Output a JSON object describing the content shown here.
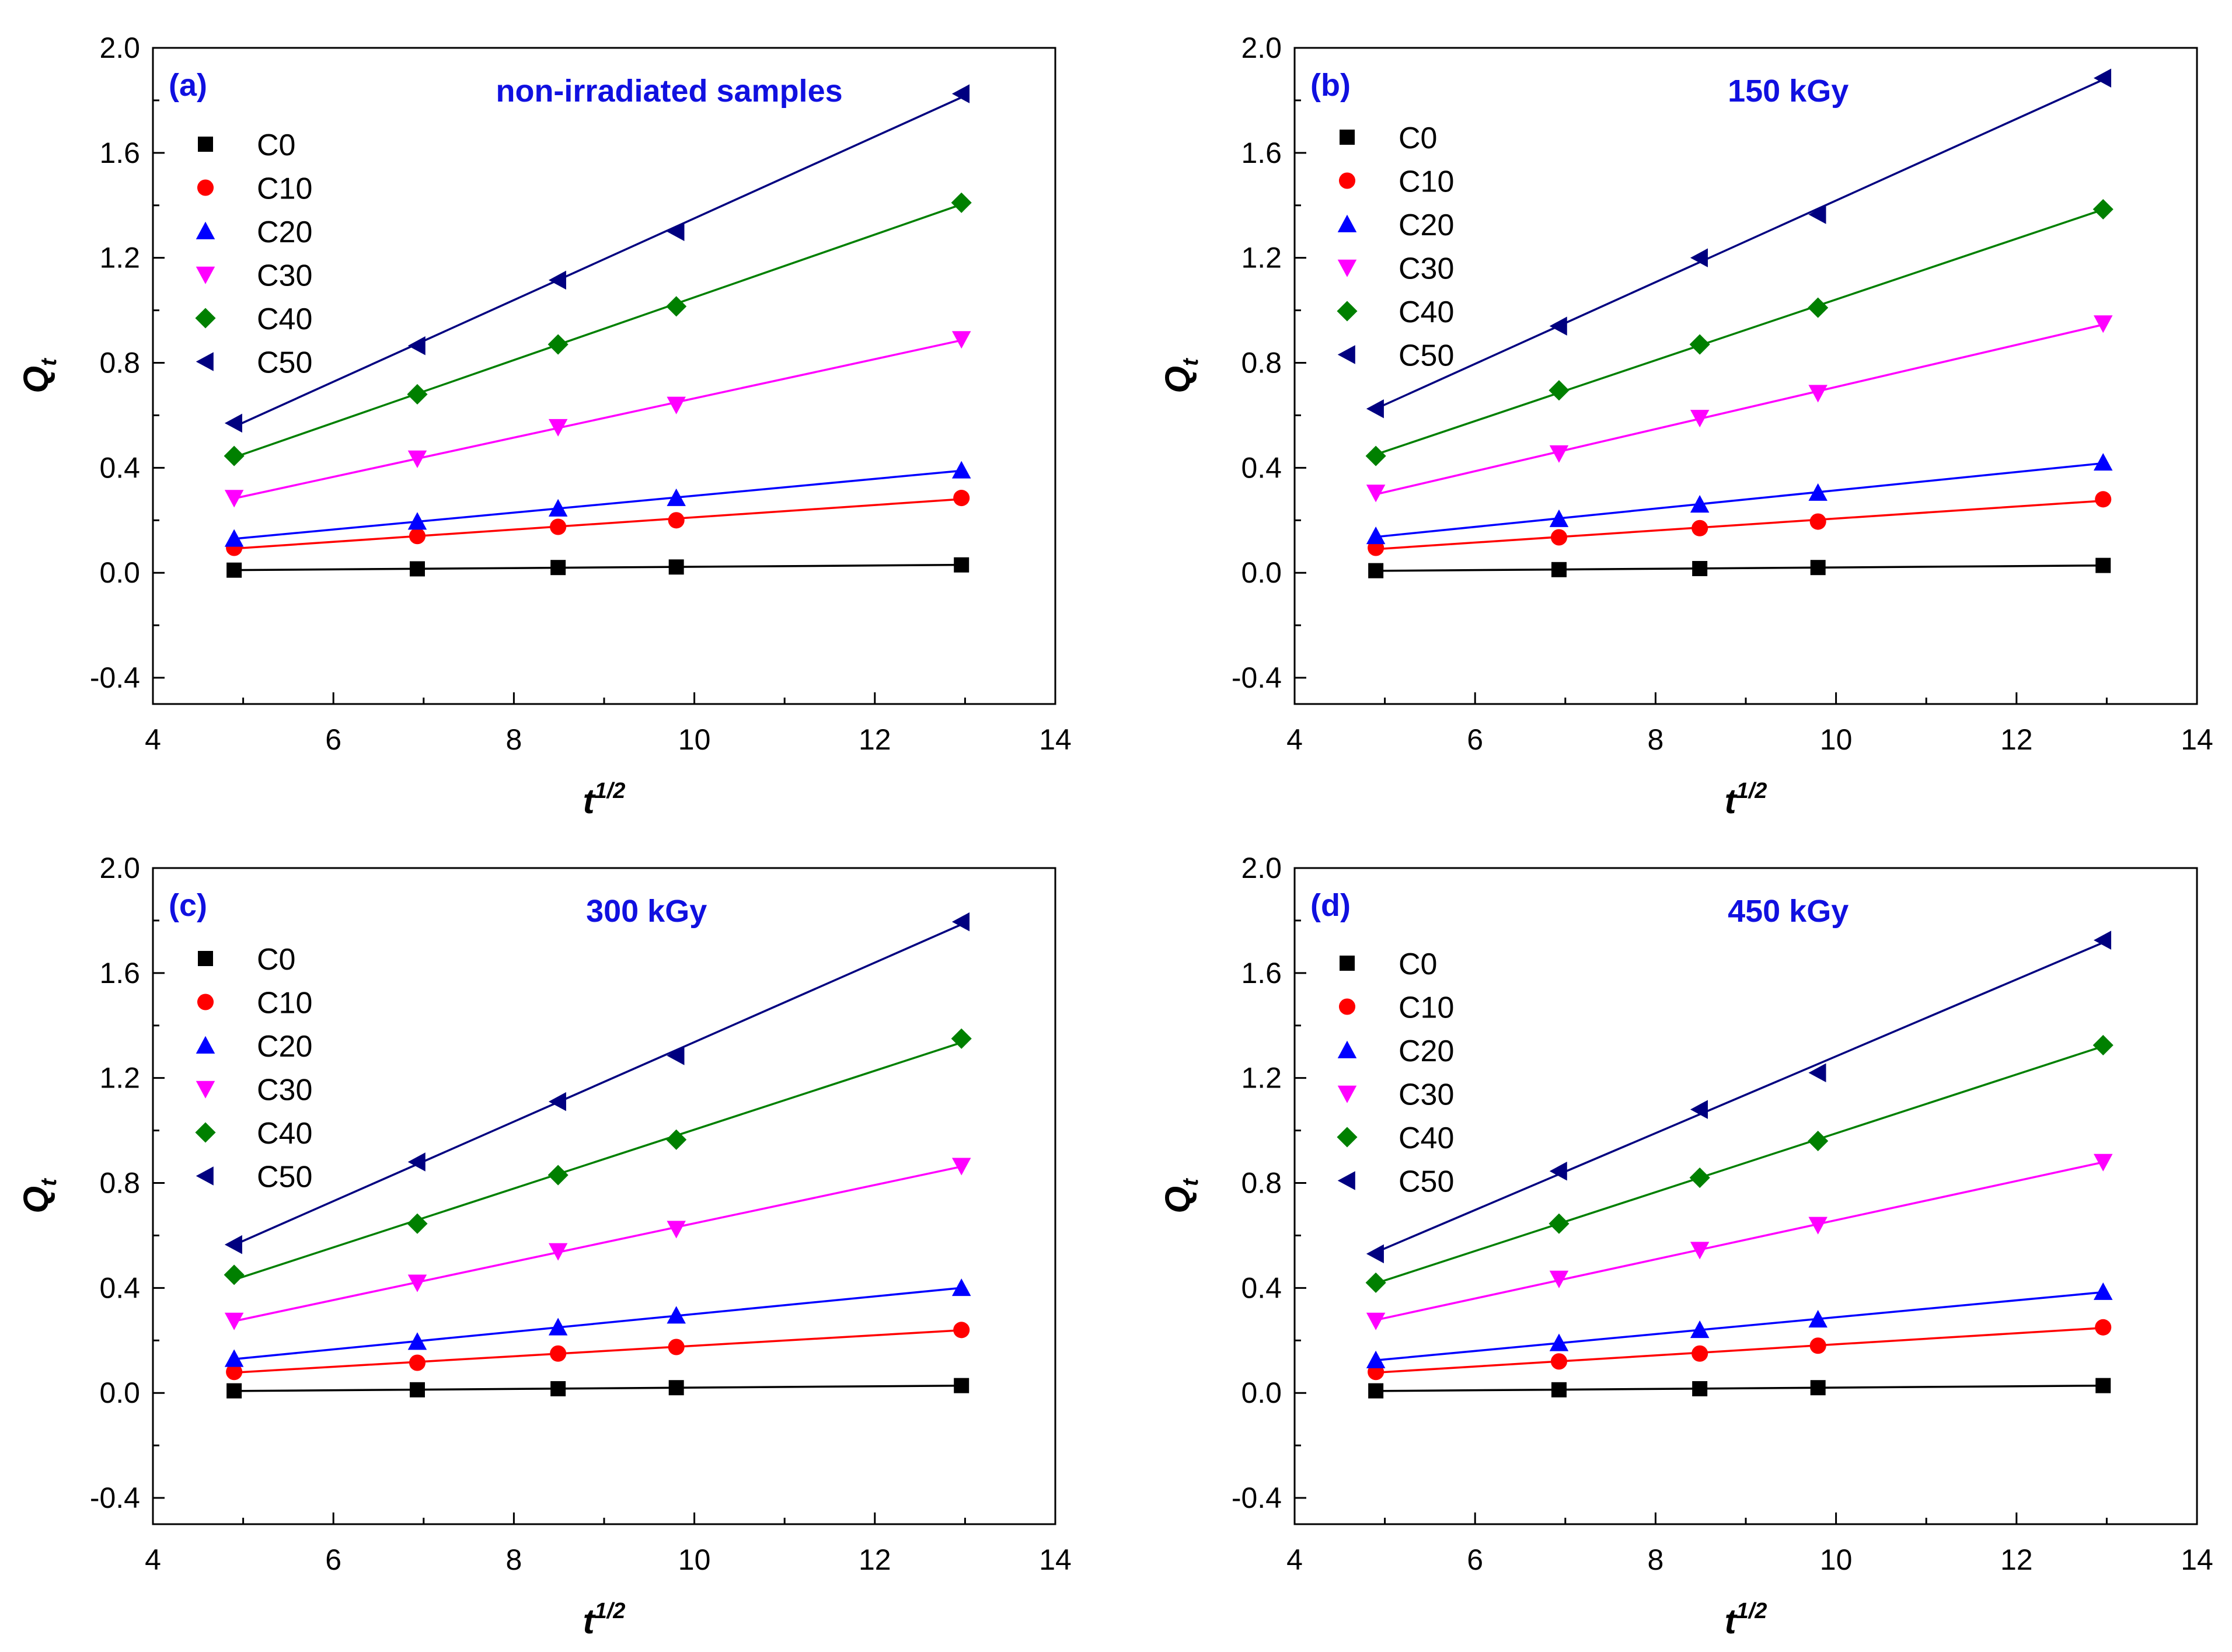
{
  "figure": {
    "panels_layout": "2x2 grid",
    "label_color": "#1010e0"
  },
  "chart_data": [
    {
      "type": "scatter",
      "panel_label": "(a)",
      "title": "non-irradiated samples",
      "xlabel": "t",
      "xlabel_sup": "1/2",
      "ylabel": "Q",
      "ylabel_sub": "t",
      "xlim": [
        4,
        14
      ],
      "ylim": [
        -0.5,
        2.0
      ],
      "xticks": [
        "4",
        "6",
        "8",
        "10",
        "12",
        "14"
      ],
      "yticks": [
        "-0.4",
        "0.0",
        "0.4",
        "0.8",
        "1.2",
        "1.6",
        "2.0"
      ],
      "x": [
        4.9,
        6.93,
        8.49,
        9.8,
        12.96
      ],
      "legend_position": "top-left",
      "fit_lines": true,
      "series": [
        {
          "name": "C0",
          "marker": "square",
          "color": "#000000",
          "values": [
            0.01,
            0.015,
            0.02,
            0.022,
            0.03
          ]
        },
        {
          "name": "C10",
          "marker": "circle",
          "color": "#ff0000",
          "values": [
            0.095,
            0.14,
            0.175,
            0.2,
            0.285
          ]
        },
        {
          "name": "C20",
          "marker": "triangle-up",
          "color": "#0000ff",
          "values": [
            0.13,
            0.195,
            0.245,
            0.285,
            0.39
          ]
        },
        {
          "name": "C30",
          "marker": "triangle-down",
          "color": "#ff00ff",
          "values": [
            0.285,
            0.435,
            0.555,
            0.64,
            0.89
          ]
        },
        {
          "name": "C40",
          "marker": "diamond",
          "color": "#008000",
          "values": [
            0.445,
            0.68,
            0.87,
            1.015,
            1.41
          ]
        },
        {
          "name": "C50",
          "marker": "triangle-left",
          "color": "#000080",
          "values": [
            0.57,
            0.865,
            1.115,
            1.3,
            1.825
          ]
        }
      ]
    },
    {
      "type": "scatter",
      "panel_label": "(b)",
      "title": "150 kGy",
      "xlabel": "t",
      "xlabel_sup": "1/2",
      "ylabel": "Q",
      "ylabel_sub": "t",
      "xlim": [
        4,
        14
      ],
      "ylim": [
        -0.5,
        2.0
      ],
      "xticks": [
        "4",
        "6",
        "8",
        "10",
        "12",
        "14"
      ],
      "yticks": [
        "-0.4",
        "0.0",
        "0.4",
        "0.8",
        "1.2",
        "1.6",
        "2.0"
      ],
      "x": [
        4.9,
        6.93,
        8.49,
        9.8,
        12.96
      ],
      "legend_position": "top-left",
      "fit_lines": true,
      "series": [
        {
          "name": "C0",
          "marker": "square",
          "color": "#000000",
          "values": [
            0.008,
            0.012,
            0.016,
            0.02,
            0.028
          ]
        },
        {
          "name": "C10",
          "marker": "circle",
          "color": "#ff0000",
          "values": [
            0.095,
            0.135,
            0.17,
            0.195,
            0.28
          ]
        },
        {
          "name": "C20",
          "marker": "triangle-up",
          "color": "#0000ff",
          "values": [
            0.14,
            0.205,
            0.26,
            0.305,
            0.42
          ]
        },
        {
          "name": "C30",
          "marker": "triangle-down",
          "color": "#ff00ff",
          "values": [
            0.305,
            0.455,
            0.59,
            0.685,
            0.95
          ]
        },
        {
          "name": "C40",
          "marker": "diamond",
          "color": "#008000",
          "values": [
            0.445,
            0.695,
            0.87,
            1.01,
            1.385
          ]
        },
        {
          "name": "C50",
          "marker": "triangle-left",
          "color": "#000080",
          "values": [
            0.625,
            0.94,
            1.2,
            1.365,
            1.885
          ]
        }
      ]
    },
    {
      "type": "scatter",
      "panel_label": "(c)",
      "title": "300 kGy",
      "xlabel": "t",
      "xlabel_sup": "1/2",
      "ylabel": "Q",
      "ylabel_sub": "t",
      "xlim": [
        4,
        14
      ],
      "ylim": [
        -0.5,
        2.0
      ],
      "xticks": [
        "4",
        "6",
        "8",
        "10",
        "12",
        "14"
      ],
      "yticks": [
        "-0.4",
        "0.0",
        "0.4",
        "0.8",
        "1.2",
        "1.6",
        "2.0"
      ],
      "x": [
        4.9,
        6.93,
        8.49,
        9.8,
        12.96
      ],
      "legend_position": "top-left",
      "fit_lines": true,
      "series": [
        {
          "name": "C0",
          "marker": "square",
          "color": "#000000",
          "values": [
            0.008,
            0.012,
            0.016,
            0.02,
            0.028
          ]
        },
        {
          "name": "C10",
          "marker": "circle",
          "color": "#ff0000",
          "values": [
            0.08,
            0.115,
            0.15,
            0.175,
            0.24
          ]
        },
        {
          "name": "C20",
          "marker": "triangle-up",
          "color": "#0000ff",
          "values": [
            0.13,
            0.195,
            0.25,
            0.295,
            0.4
          ]
        },
        {
          "name": "C30",
          "marker": "triangle-down",
          "color": "#ff00ff",
          "values": [
            0.275,
            0.42,
            0.54,
            0.625,
            0.865
          ]
        },
        {
          "name": "C40",
          "marker": "diamond",
          "color": "#008000",
          "values": [
            0.45,
            0.645,
            0.83,
            0.965,
            1.35
          ]
        },
        {
          "name": "C50",
          "marker": "triangle-left",
          "color": "#000080",
          "values": [
            0.565,
            0.88,
            1.11,
            1.285,
            1.795
          ]
        }
      ]
    },
    {
      "type": "scatter",
      "panel_label": "(d)",
      "title": "450 kGy",
      "xlabel": "t",
      "xlabel_sup": "1/2",
      "ylabel": "Q",
      "ylabel_sub": "t",
      "xlim": [
        4,
        14
      ],
      "ylim": [
        -0.5,
        2.0
      ],
      "xticks": [
        "4",
        "6",
        "8",
        "10",
        "12",
        "14"
      ],
      "yticks": [
        "-0.4",
        "0.0",
        "0.4",
        "0.8",
        "1.2",
        "1.6",
        "2.0"
      ],
      "x": [
        4.9,
        6.93,
        8.49,
        9.8,
        12.96
      ],
      "legend_position": "top-left",
      "fit_lines": true,
      "series": [
        {
          "name": "C0",
          "marker": "square",
          "color": "#000000",
          "values": [
            0.008,
            0.012,
            0.016,
            0.02,
            0.028
          ]
        },
        {
          "name": "C10",
          "marker": "circle",
          "color": "#ff0000",
          "values": [
            0.08,
            0.12,
            0.15,
            0.18,
            0.25
          ]
        },
        {
          "name": "C20",
          "marker": "triangle-up",
          "color": "#0000ff",
          "values": [
            0.125,
            0.19,
            0.24,
            0.28,
            0.385
          ]
        },
        {
          "name": "C30",
          "marker": "triangle-down",
          "color": "#ff00ff",
          "values": [
            0.275,
            0.435,
            0.545,
            0.64,
            0.88
          ]
        },
        {
          "name": "C40",
          "marker": "diamond",
          "color": "#008000",
          "values": [
            0.42,
            0.645,
            0.82,
            0.96,
            1.325
          ]
        },
        {
          "name": "C50",
          "marker": "triangle-left",
          "color": "#000080",
          "values": [
            0.53,
            0.845,
            1.08,
            1.22,
            1.725
          ]
        }
      ]
    }
  ]
}
